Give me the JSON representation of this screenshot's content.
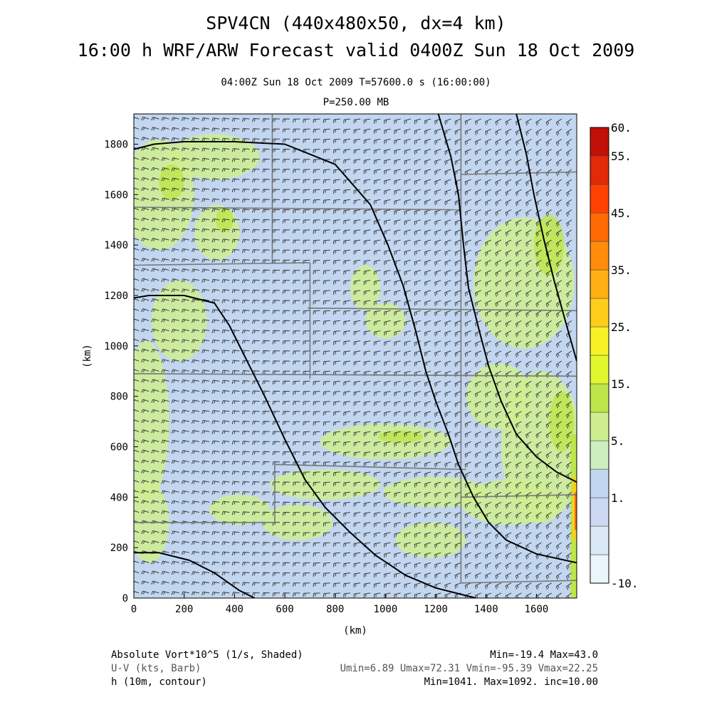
{
  "header": {
    "title_line1": "SPV4CN (440x480x50, dx=4 km)",
    "title_line2": "16:00 h WRF/ARW Forecast valid 0400Z Sun 18 Oct 2009",
    "time_info": "04:00Z Sun 18 Oct 2009     T=57600.0 s (16:00:00)",
    "level": "P=250.00 MB"
  },
  "chart_data": {
    "type": "heatmap",
    "xlabel": "(km)",
    "ylabel": "(km)",
    "xlim": [
      0,
      1760
    ],
    "ylim": [
      0,
      1920
    ],
    "x_ticks": [
      "0",
      "200",
      "400",
      "600",
      "800",
      "1000",
      "1200",
      "1400",
      "1600"
    ],
    "y_ticks": [
      "0",
      "200",
      "400",
      "600",
      "800",
      "1000",
      "1200",
      "1400",
      "1600",
      "1800"
    ],
    "colorbar": {
      "labels": [
        "-10.",
        "1.",
        "5.",
        "15.",
        "25.",
        "35.",
        "45.",
        "55.",
        "60."
      ],
      "levels": [
        -10,
        -5,
        0,
        1,
        2.5,
        5,
        10,
        15,
        20,
        25,
        30,
        35,
        40,
        45,
        50,
        55,
        60
      ],
      "colors": [
        "#eaf6fb",
        "#dbe8f5",
        "#cdd9f2",
        "#c2d6f0",
        "#cdefc0",
        "#cfee90",
        "#bde64a",
        "#e1f82f",
        "#f6f226",
        "#fecd1a",
        "#ffb012",
        "#ff8c0a",
        "#ff6a05",
        "#ff4202",
        "#e22a08",
        "#c01008"
      ]
    },
    "contours_h10m": [
      {
        "level": "low",
        "points": [
          [
            0,
            1780
          ],
          [
            80,
            1800
          ],
          [
            200,
            1810
          ],
          [
            400,
            1810
          ],
          [
            600,
            1800
          ],
          [
            800,
            1720
          ],
          [
            940,
            1560
          ],
          [
            1010,
            1400
          ],
          [
            1070,
            1240
          ],
          [
            1120,
            1060
          ],
          [
            1160,
            900
          ],
          [
            1200,
            780
          ],
          [
            1250,
            650
          ],
          [
            1290,
            530
          ],
          [
            1350,
            400
          ],
          [
            1410,
            300
          ],
          [
            1480,
            230
          ],
          [
            1600,
            175
          ],
          [
            1760,
            140
          ]
        ]
      },
      {
        "level": "mid",
        "points": [
          [
            0,
            1190
          ],
          [
            60,
            1200
          ],
          [
            200,
            1200
          ],
          [
            320,
            1170
          ],
          [
            380,
            1080
          ],
          [
            440,
            960
          ],
          [
            520,
            800
          ],
          [
            600,
            630
          ],
          [
            680,
            470
          ],
          [
            760,
            360
          ],
          [
            860,
            260
          ],
          [
            960,
            170
          ],
          [
            1080,
            90
          ],
          [
            1200,
            40
          ],
          [
            1320,
            10
          ],
          [
            1360,
            0
          ]
        ]
      },
      {
        "level": "bottom",
        "points": [
          [
            0,
            180
          ],
          [
            100,
            180
          ],
          [
            220,
            150
          ],
          [
            320,
            100
          ],
          [
            420,
            30
          ],
          [
            480,
            0
          ]
        ]
      },
      {
        "level": "high",
        "points": [
          [
            1210,
            1920
          ],
          [
            1260,
            1750
          ],
          [
            1290,
            1600
          ],
          [
            1310,
            1400
          ],
          [
            1330,
            1230
          ],
          [
            1370,
            1070
          ],
          [
            1410,
            920
          ],
          [
            1460,
            780
          ],
          [
            1520,
            650
          ],
          [
            1600,
            560
          ],
          [
            1680,
            500
          ],
          [
            1760,
            460
          ]
        ]
      },
      {
        "level": "east",
        "points": [
          [
            1520,
            1920
          ],
          [
            1560,
            1760
          ],
          [
            1590,
            1600
          ],
          [
            1630,
            1420
          ],
          [
            1670,
            1260
          ],
          [
            1720,
            1080
          ],
          [
            1760,
            940
          ]
        ]
      }
    ],
    "boundary_lines": [
      [
        [
          0,
          1320
        ],
        [
          700,
          1330
        ]
      ],
      [
        [
          700,
          1330
        ],
        [
          700,
          870
        ]
      ],
      [
        [
          0,
          890
        ],
        [
          1760,
          880
        ]
      ],
      [
        [
          690,
          1150
        ],
        [
          1760,
          1140
        ]
      ],
      [
        [
          550,
          1920
        ],
        [
          550,
          1330
        ]
      ],
      [
        [
          1300,
          1920
        ],
        [
          1300,
          60
        ]
      ],
      [
        [
          560,
          530
        ],
        [
          1320,
          510
        ]
      ],
      [
        [
          560,
          530
        ],
        [
          560,
          300
        ]
      ],
      [
        [
          0,
          300
        ],
        [
          560,
          300
        ]
      ],
      [
        [
          1300,
          400
        ],
        [
          1760,
          410
        ]
      ],
      [
        [
          1300,
          60
        ],
        [
          1760,
          70
        ]
      ],
      [
        [
          0,
          1550
        ],
        [
          1300,
          1540
        ]
      ],
      [
        [
          1300,
          1680
        ],
        [
          1760,
          1690
        ]
      ]
    ],
    "annotations": {
      "vort_label": "Absolute Vort*10^5 (1/s, Shaded)",
      "vort_stats": "Min=-19.4 Max=43.0",
      "wind_label": "U-V (kts, Barb)",
      "wind_stats": "Umin=6.89 Umax=72.31 Vmin=-95.39 Vmax=22.25",
      "h_label": "h (10m, contour)",
      "h_stats": "Min=1041. Max=1092. inc=10.00"
    }
  }
}
